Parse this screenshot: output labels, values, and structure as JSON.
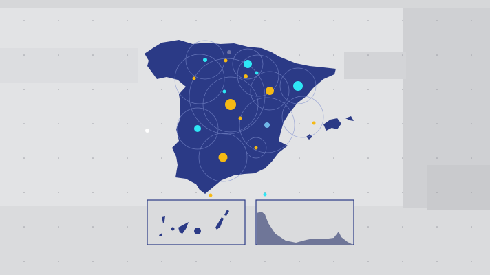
{
  "map": {
    "region": "Spain",
    "colors": {
      "land": "#2b3a86",
      "background": "#e2e3e5",
      "marker_cyan": "#2ee6f5",
      "marker_yellow": "#f5b914",
      "marker_light_blue": "#6fb6e8",
      "inset_border": "#2b3a86",
      "inset_relief": "#6f7698"
    },
    "insets": [
      "canary-islands",
      "coastal-profile"
    ],
    "icons": [
      "location-marker-cyan",
      "location-marker-yellow"
    ]
  }
}
